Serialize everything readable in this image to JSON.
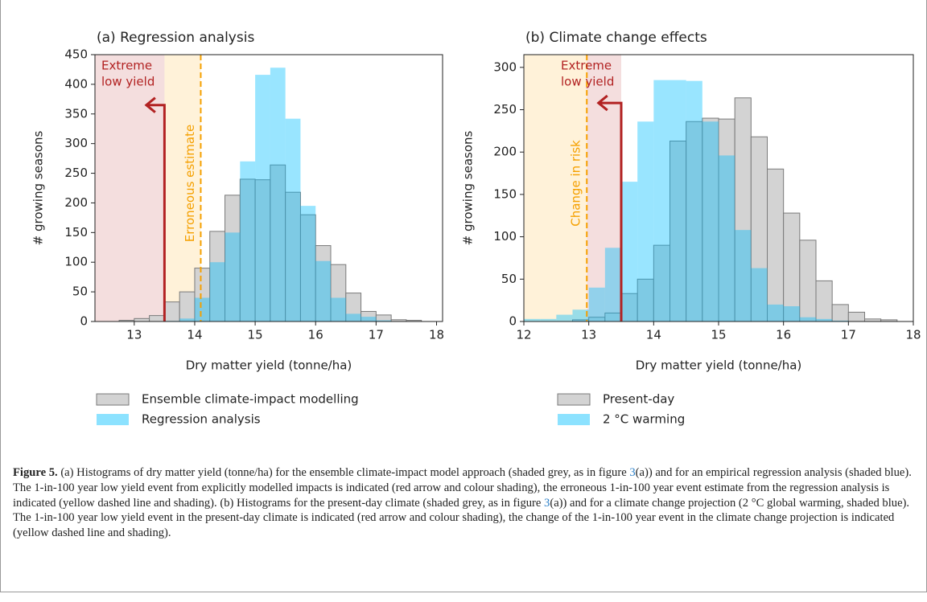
{
  "chart_data": [
    {
      "type": "histogram",
      "title": "(a) Regression analysis",
      "xlabel": "Dry matter yield (tonne/ha)",
      "ylabel": "# growing seasons",
      "xlim": [
        12.35,
        18.1
      ],
      "xticks": [
        13,
        14,
        15,
        16,
        17,
        18
      ],
      "ylim": [
        0,
        450
      ],
      "yticks": [
        0,
        50,
        100,
        150,
        200,
        250,
        300,
        350,
        400,
        450
      ],
      "series": [
        {
          "name": "Ensemble climate-impact modelling",
          "color": "#d3d3d3",
          "bins": [
            12.75,
            13.0,
            13.25,
            13.5,
            13.75,
            14.0,
            14.25,
            14.5,
            14.75,
            15.0,
            15.25,
            15.5,
            15.75,
            16.0,
            16.25,
            16.5,
            16.75,
            17.0,
            17.25,
            17.5,
            17.75
          ],
          "values": [
            2,
            5,
            10,
            33,
            50,
            90,
            152,
            213,
            240,
            239,
            264,
            218,
            180,
            128,
            96,
            48,
            17,
            11,
            3,
            2
          ]
        },
        {
          "name": "Regression analysis",
          "color": "#00bfff",
          "bins": [
            13.5,
            13.75,
            14.0,
            14.25,
            14.5,
            14.75,
            15.0,
            15.25,
            15.5,
            15.75,
            16.0,
            16.25,
            16.5,
            16.75,
            17.0,
            17.25
          ],
          "values": [
            1,
            5,
            40,
            100,
            150,
            270,
            416,
            428,
            342,
            195,
            102,
            40,
            13,
            8,
            2
          ]
        }
      ],
      "shading": [
        {
          "color": "#b22222",
          "x": [
            12.35,
            13.5
          ]
        },
        {
          "color": "#ffa500",
          "x": [
            13.5,
            14.1
          ]
        }
      ],
      "arrow": {
        "x": 13.5,
        "y": 365,
        "to_x": 13.2,
        "color": "#b22222"
      },
      "dashed_line": {
        "x": 14.1,
        "color": "#f5a000"
      },
      "annotations": [
        {
          "text": [
            "Extreme",
            "low yield"
          ],
          "color": "#b22222"
        },
        {
          "text": "Erroneous estimate",
          "color": "#f5a000"
        }
      ]
    },
    {
      "type": "histogram",
      "title": "(b) Climate change effects",
      "xlabel": "Dry matter yield (tonne/ha)",
      "ylabel": "# growing seasons",
      "xlim": [
        12,
        18
      ],
      "xticks": [
        12,
        13,
        14,
        15,
        16,
        17,
        18
      ],
      "ylim": [
        0,
        315
      ],
      "yticks": [
        0,
        50,
        100,
        150,
        200,
        250,
        300
      ],
      "series": [
        {
          "name": "Present-day",
          "color": "#d3d3d3",
          "bins": [
            12.75,
            13.0,
            13.25,
            13.5,
            13.75,
            14.0,
            14.25,
            14.5,
            14.75,
            15.0,
            15.25,
            15.5,
            15.75,
            16.0,
            16.25,
            16.5,
            16.75,
            17.0,
            17.25,
            17.5,
            17.75
          ],
          "values": [
            2,
            5,
            10,
            33,
            50,
            90,
            213,
            236,
            240,
            239,
            264,
            218,
            180,
            128,
            96,
            48,
            20,
            11,
            3,
            2
          ]
        },
        {
          "name": "2 °C warming",
          "color": "#00bfff",
          "bins": [
            12.0,
            12.25,
            12.5,
            12.75,
            13.0,
            13.25,
            13.5,
            13.75,
            14.0,
            14.25,
            14.5,
            14.75,
            15.0,
            15.25,
            15.5,
            15.75,
            16.0,
            16.25,
            16.5,
            16.75,
            17.0
          ],
          "values": [
            3,
            3,
            8,
            14,
            40,
            87,
            165,
            236,
            285,
            285,
            284,
            236,
            196,
            108,
            63,
            20,
            18,
            5,
            3,
            1
          ]
        }
      ],
      "shading": [
        {
          "color": "#ffa500",
          "x": [
            12,
            12.97
          ]
        },
        {
          "color": "#b22222",
          "x": [
            12.97,
            13.5
          ]
        }
      ],
      "arrow": {
        "x": 13.5,
        "y": 258,
        "to_x": 13.15,
        "color": "#b22222"
      },
      "dashed_line": {
        "x": 12.97,
        "color": "#f5a000"
      },
      "annotations": [
        {
          "text": [
            "Extreme",
            "low yield"
          ],
          "color": "#b22222"
        },
        {
          "text": "Change in risk",
          "color": "#f5a000"
        }
      ]
    }
  ],
  "caption": {
    "label": "Figure 5.",
    "parts": [
      {
        "text": " (a) Histograms of dry matter yield (tonne/ha) for the ensemble climate-impact model approach (shaded grey, as in figure "
      },
      {
        "text": "3",
        "link": true
      },
      {
        "text": "(a)) and for an empirical regression analysis (shaded blue). The 1-in-100 year low yield event from explicitly modelled impacts is indicated (red arrow and colour shading), the erroneous 1-in-100 year event estimate from the regression analysis is indicated (yellow dashed line and shading). (b) Histograms for the present-day climate (shaded grey, as in figure "
      },
      {
        "text": "3",
        "link": true
      },
      {
        "text": "(a)) and for a climate change projection (2 °C global warming, shaded blue). The 1-in-100 year low yield event in the present-day climate is indicated (red arrow and colour shading), the change of the 1-in-100 year event in the climate change projection is indicated (yellow dashed line and shading)."
      }
    ]
  }
}
